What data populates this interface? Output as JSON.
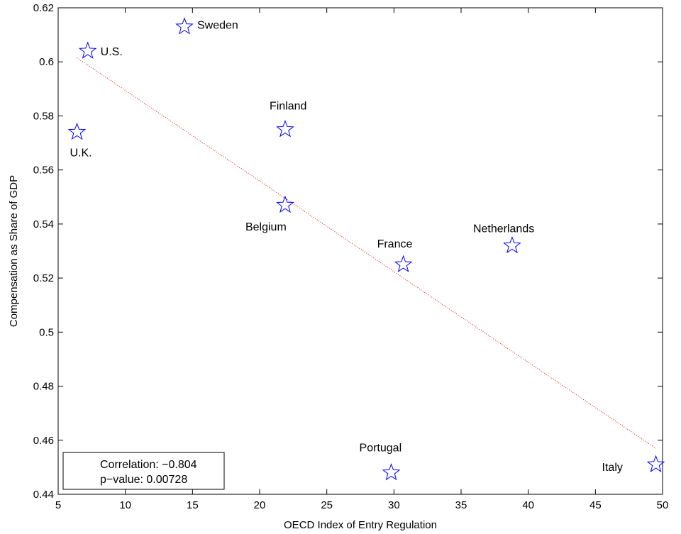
{
  "chart_data": {
    "type": "scatter",
    "xlabel": "OECD Index of Entry Regulation",
    "ylabel": "Compensation as Share of GDP",
    "xlim": [
      5,
      50
    ],
    "ylim": [
      0.44,
      0.62
    ],
    "xticks": [
      "5",
      "10",
      "15",
      "20",
      "25",
      "30",
      "35",
      "40",
      "45",
      "50"
    ],
    "yticks": [
      "0.44",
      "0.46",
      "0.48",
      "0.5",
      "0.52",
      "0.54",
      "0.56",
      "0.58",
      "0.6",
      "0.62"
    ],
    "grid": false,
    "marker": "star",
    "marker_color": "#0000ff",
    "fit_line_color": "#ff0000",
    "points": [
      {
        "label": "Sweden",
        "x": 14.4,
        "y": 0.613
      },
      {
        "label": "U.S.",
        "x": 7.2,
        "y": 0.604
      },
      {
        "label": "Finland",
        "x": 21.9,
        "y": 0.575
      },
      {
        "label": "U.K.",
        "x": 6.4,
        "y": 0.574
      },
      {
        "label": "Belgium",
        "x": 21.9,
        "y": 0.547
      },
      {
        "label": "Netherlands",
        "x": 38.8,
        "y": 0.532
      },
      {
        "label": "France",
        "x": 30.7,
        "y": 0.525
      },
      {
        "label": "Portugal",
        "x": 29.8,
        "y": 0.448
      },
      {
        "label": "Italy",
        "x": 49.5,
        "y": 0.451
      }
    ],
    "fit_line": {
      "x": [
        6.4,
        49.5
      ],
      "y": [
        0.6015,
        0.457
      ]
    },
    "annotation": {
      "correlation": "Correlation: −0.804",
      "pvalue": "p−value: 0.00728"
    }
  }
}
